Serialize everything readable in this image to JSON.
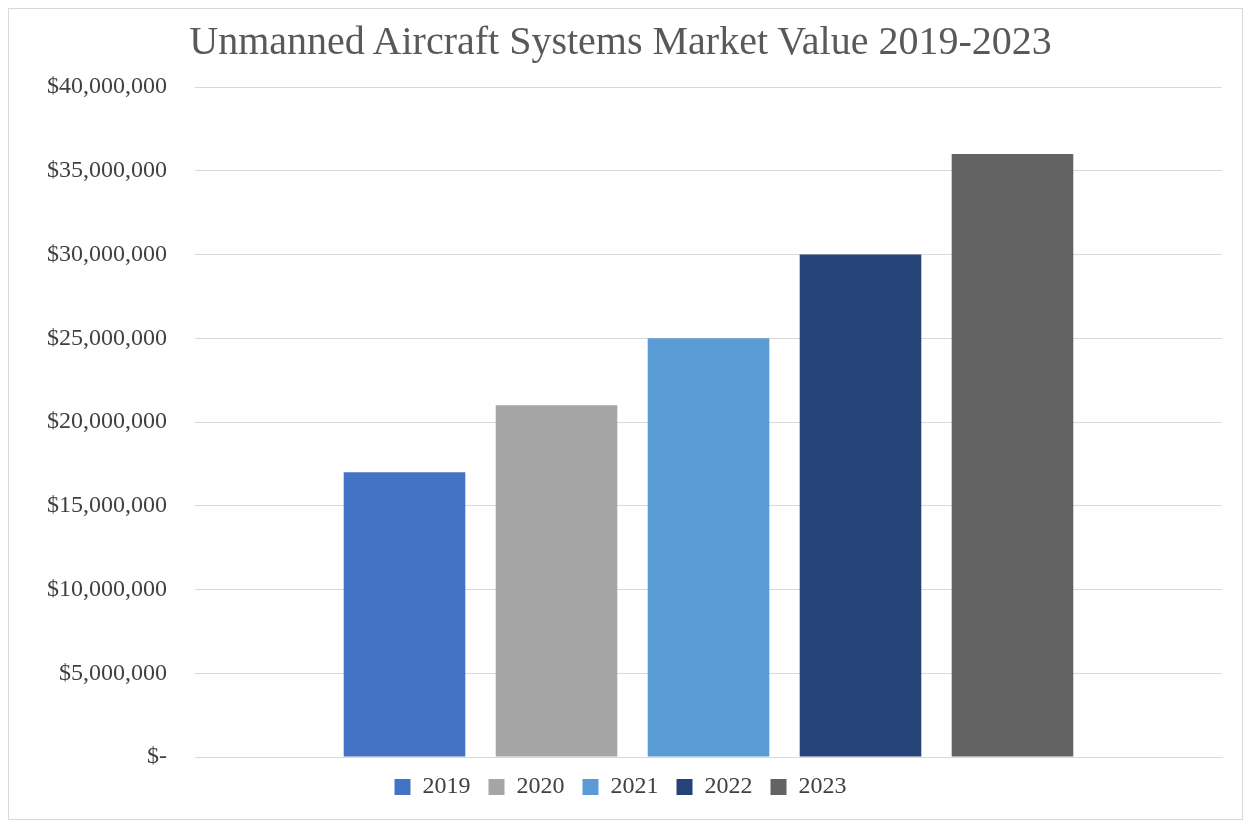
{
  "chart_data": {
    "type": "bar",
    "title": "Unmanned Aircraft Systems Market Value 2019-2023",
    "categories": [
      null
    ],
    "series": [
      {
        "name": "2019",
        "color": "#4472c4",
        "values": [
          17000000
        ]
      },
      {
        "name": "2020",
        "color": "#a5a5a5",
        "values": [
          21000000
        ]
      },
      {
        "name": "2021",
        "color": "#5b9bd5",
        "values": [
          25000000
        ]
      },
      {
        "name": "2022",
        "color": "#264478",
        "values": [
          30000000
        ]
      },
      {
        "name": "2023",
        "color": "#636363",
        "values": [
          36000000
        ]
      }
    ],
    "ylim": [
      0,
      40000000
    ],
    "yticks": [
      {
        "value": 0,
        "label": "$-"
      },
      {
        "value": 5000000,
        "label": "$5,000,000"
      },
      {
        "value": 10000000,
        "label": "$10,000,000"
      },
      {
        "value": 15000000,
        "label": "$15,000,000"
      },
      {
        "value": 20000000,
        "label": "$20,000,000"
      },
      {
        "value": 25000000,
        "label": "$25,000,000"
      },
      {
        "value": 30000000,
        "label": "$30,000,000"
      },
      {
        "value": 35000000,
        "label": "$35,000,000"
      },
      {
        "value": 40000000,
        "label": "$40,000,000"
      }
    ],
    "tick_labels": "y",
    "grid": "y",
    "legend": "bottom"
  }
}
